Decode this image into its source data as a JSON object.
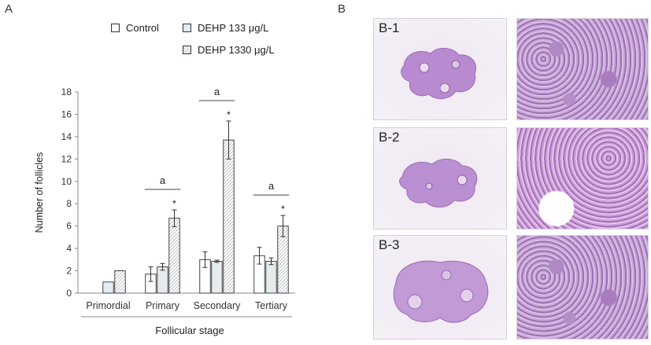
{
  "panel_a_letter": "A",
  "panel_b_letter": "B",
  "legend": [
    {
      "label": "Control",
      "pattern": "plain"
    },
    {
      "label": "DEHP 133 μg/L",
      "pattern": "light-grey"
    },
    {
      "label": "DEHP 1330 μg/L",
      "pattern": "hatched"
    }
  ],
  "chart_data": {
    "type": "bar",
    "categories": [
      "Primordial",
      "Primary",
      "Secondary",
      "Tertiary"
    ],
    "series": [
      {
        "name": "Control",
        "values": [
          null,
          1.7,
          3.0,
          3.35
        ],
        "errors": [
          0,
          0.65,
          0.7,
          0.75
        ]
      },
      {
        "name": "DEHP 133 μg/L",
        "values": [
          1.0,
          2.35,
          2.85,
          2.85
        ],
        "errors": [
          0,
          0.3,
          0.1,
          0.3
        ]
      },
      {
        "name": "DEHP 1330 μg/L",
        "values": [
          2.0,
          6.7,
          13.7,
          6.0
        ],
        "errors": [
          0,
          0.75,
          1.7,
          0.95
        ]
      }
    ],
    "significance_stars": [
      false,
      true,
      true,
      true
    ],
    "bracket_label": "a",
    "brackets_on": [
      false,
      true,
      true,
      true
    ],
    "ylabel": "Number of follicles",
    "xlabel": "Follicular stage",
    "ylim": [
      0,
      18
    ],
    "yticks": [
      0,
      2,
      4,
      6,
      8,
      10,
      12,
      14,
      16,
      18
    ]
  },
  "histology_rows": [
    {
      "label": "B-1"
    },
    {
      "label": "B-2"
    },
    {
      "label": "B-3"
    }
  ]
}
